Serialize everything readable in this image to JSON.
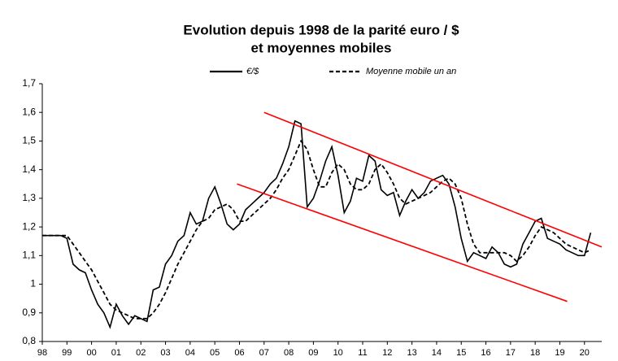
{
  "chart_data": {
    "type": "line",
    "title": "Evolution depuis 1998 de la parité euro / $",
    "subtitle": "et moyennes mobiles",
    "x": [
      1998,
      1998.25,
      1998.5,
      1998.75,
      1999,
      1999.25,
      1999.5,
      1999.75,
      2000,
      2000.25,
      2000.5,
      2000.75,
      2001,
      2001.25,
      2001.5,
      2001.75,
      2002,
      2002.25,
      2002.5,
      2002.75,
      2003,
      2003.25,
      2003.5,
      2003.75,
      2004,
      2004.25,
      2004.5,
      2004.75,
      2005,
      2005.25,
      2005.5,
      2005.75,
      2006,
      2006.25,
      2006.5,
      2006.75,
      2007,
      2007.25,
      2007.5,
      2007.75,
      2008,
      2008.25,
      2008.5,
      2008.75,
      2009,
      2009.25,
      2009.5,
      2009.75,
      2010,
      2010.25,
      2010.5,
      2010.75,
      2011,
      2011.25,
      2011.5,
      2011.75,
      2012,
      2012.25,
      2012.5,
      2012.75,
      2013,
      2013.25,
      2013.5,
      2013.75,
      2014,
      2014.25,
      2014.5,
      2014.75,
      2015,
      2015.25,
      2015.5,
      2015.75,
      2016,
      2016.25,
      2016.5,
      2016.75,
      2017,
      2017.25,
      2017.5,
      2017.75,
      2018,
      2018.25,
      2018.5,
      2018.75,
      2019,
      2019.25,
      2019.5,
      2019.75,
      2020,
      2020.25
    ],
    "series": [
      {
        "name": "€/$",
        "color": "#000000",
        "dash": false,
        "values": [
          1.17,
          1.17,
          1.17,
          1.17,
          1.16,
          1.07,
          1.05,
          1.04,
          0.98,
          0.93,
          0.9,
          0.85,
          0.93,
          0.89,
          0.86,
          0.89,
          0.88,
          0.87,
          0.98,
          0.99,
          1.07,
          1.1,
          1.15,
          1.17,
          1.25,
          1.21,
          1.22,
          1.3,
          1.34,
          1.28,
          1.21,
          1.19,
          1.21,
          1.26,
          1.28,
          1.3,
          1.32,
          1.35,
          1.37,
          1.42,
          1.48,
          1.57,
          1.56,
          1.27,
          1.3,
          1.36,
          1.43,
          1.48,
          1.38,
          1.25,
          1.29,
          1.37,
          1.36,
          1.45,
          1.43,
          1.33,
          1.31,
          1.32,
          1.24,
          1.29,
          1.33,
          1.3,
          1.32,
          1.36,
          1.37,
          1.38,
          1.35,
          1.27,
          1.16,
          1.08,
          1.11,
          1.1,
          1.09,
          1.13,
          1.11,
          1.07,
          1.06,
          1.07,
          1.14,
          1.18,
          1.22,
          1.23,
          1.16,
          1.15,
          1.14,
          1.12,
          1.11,
          1.1,
          1.1,
          1.18
        ]
      },
      {
        "name": "Moyenne mobile un an",
        "color": "#000000",
        "dash": true,
        "values": [
          1.17,
          1.17,
          1.17,
          1.17,
          1.17,
          1.14,
          1.11,
          1.08,
          1.05,
          1.01,
          0.97,
          0.93,
          0.91,
          0.9,
          0.89,
          0.88,
          0.88,
          0.88,
          0.9,
          0.93,
          0.97,
          1.02,
          1.07,
          1.11,
          1.15,
          1.19,
          1.22,
          1.23,
          1.26,
          1.27,
          1.28,
          1.26,
          1.22,
          1.22,
          1.24,
          1.26,
          1.28,
          1.3,
          1.33,
          1.37,
          1.4,
          1.45,
          1.5,
          1.47,
          1.4,
          1.34,
          1.34,
          1.39,
          1.42,
          1.4,
          1.35,
          1.33,
          1.33,
          1.35,
          1.4,
          1.42,
          1.39,
          1.35,
          1.3,
          1.28,
          1.29,
          1.3,
          1.31,
          1.32,
          1.34,
          1.36,
          1.37,
          1.35,
          1.3,
          1.21,
          1.14,
          1.11,
          1.11,
          1.11,
          1.11,
          1.11,
          1.1,
          1.08,
          1.1,
          1.13,
          1.17,
          1.2,
          1.19,
          1.18,
          1.16,
          1.14,
          1.13,
          1.12,
          1.11,
          1.12
        ]
      }
    ],
    "trend_lines": [
      {
        "color": "#ff0000",
        "x": [
          2007,
          2020.7
        ],
        "y": [
          1.6,
          1.13
        ]
      },
      {
        "color": "#ff0000",
        "x": [
          2005.9,
          2019.3
        ],
        "y": [
          1.35,
          0.94
        ]
      }
    ],
    "xlim": [
      1998,
      2020.7
    ],
    "xticks": [
      {
        "value": 1998,
        "label": "98"
      },
      {
        "value": 1999,
        "label": "99"
      },
      {
        "value": 2000,
        "label": "00"
      },
      {
        "value": 2001,
        "label": "01"
      },
      {
        "value": 2002,
        "label": "02"
      },
      {
        "value": 2003,
        "label": "03"
      },
      {
        "value": 2004,
        "label": "04"
      },
      {
        "value": 2005,
        "label": "05"
      },
      {
        "value": 2006,
        "label": "06"
      },
      {
        "value": 2007,
        "label": "07"
      },
      {
        "value": 2008,
        "label": "08"
      },
      {
        "value": 2009,
        "label": "09"
      },
      {
        "value": 2010,
        "label": "10"
      },
      {
        "value": 2011,
        "label": "11"
      },
      {
        "value": 2012,
        "label": "12"
      },
      {
        "value": 2013,
        "label": "13"
      },
      {
        "value": 2014,
        "label": "14"
      },
      {
        "value": 2015,
        "label": "15"
      },
      {
        "value": 2016,
        "label": "16"
      },
      {
        "value": 2017,
        "label": "17"
      },
      {
        "value": 2018,
        "label": "18"
      },
      {
        "value": 2019,
        "label": "19"
      },
      {
        "value": 2020,
        "label": "20"
      }
    ],
    "ylim": [
      0.8,
      1.7
    ],
    "yticks": [
      {
        "value": 0.8,
        "label": "0,8"
      },
      {
        "value": 0.9,
        "label": "0,9"
      },
      {
        "value": 1,
        "label": "1"
      },
      {
        "value": 1.1,
        "label": "1,1"
      },
      {
        "value": 1.2,
        "label": "1,2"
      },
      {
        "value": 1.3,
        "label": "1,3"
      },
      {
        "value": 1.4,
        "label": "1,4"
      },
      {
        "value": 1.5,
        "label": "1,5"
      },
      {
        "value": 1.6,
        "label": "1,6"
      },
      {
        "value": 1.7,
        "label": "1,7"
      }
    ],
    "grid": false
  }
}
